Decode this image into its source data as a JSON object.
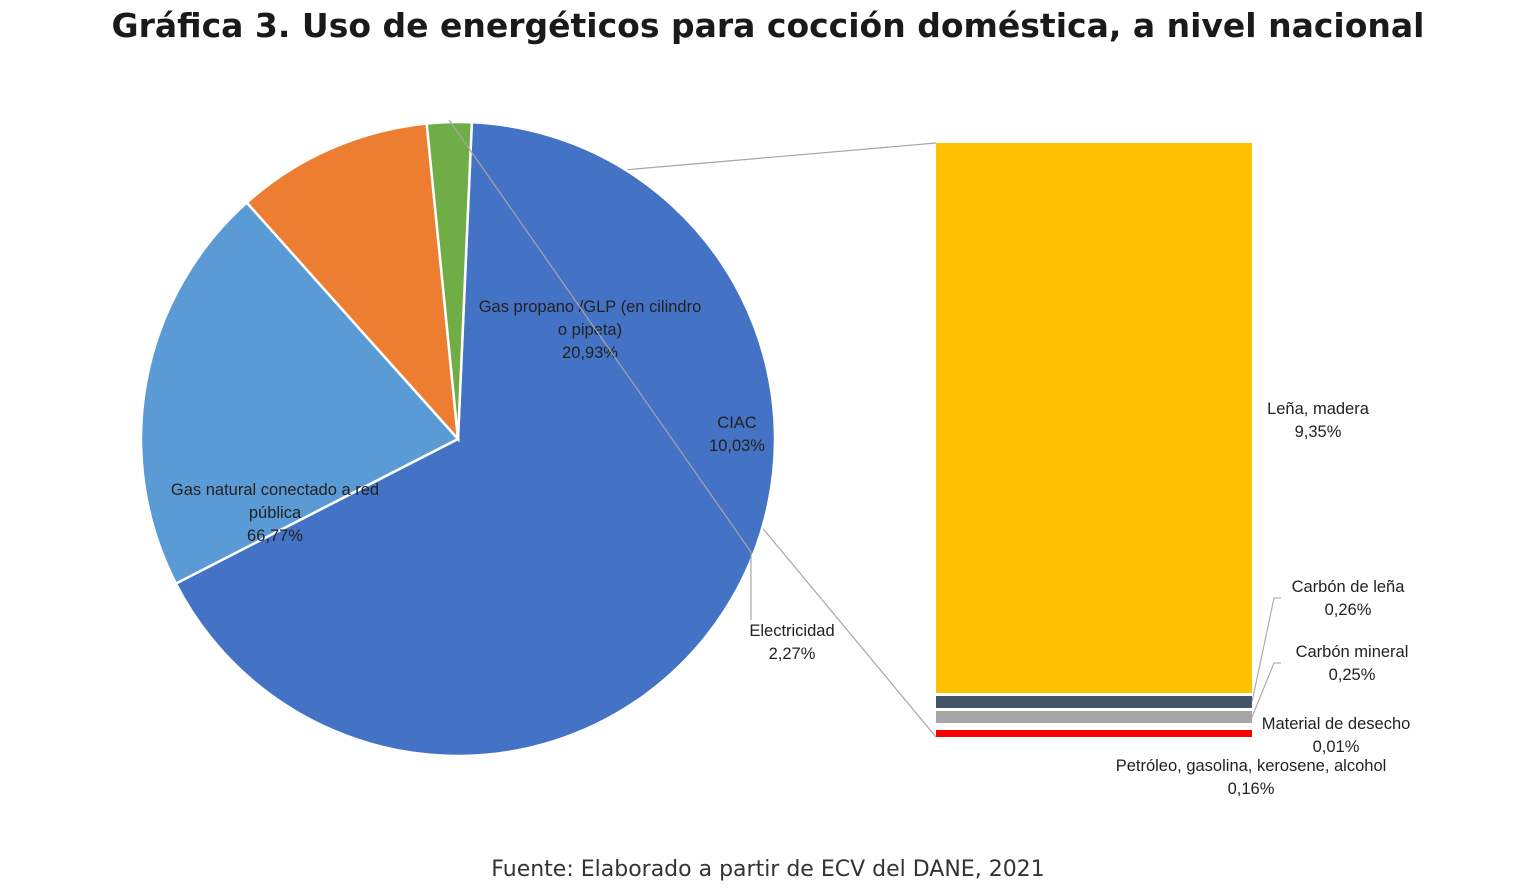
{
  "title": "Gráfica 3. Uso de energéticos para cocción doméstica, a nivel nacional",
  "source": "Fuente: Elaborado a partir de ECV del DANE, 2021",
  "chart_data": {
    "type": "pie",
    "legend": "none",
    "slices": [
      {
        "label_lines": [
          "Gas natural conectado a red",
          "pública"
        ],
        "value": 66.77,
        "value_label": "66,77%",
        "color": "#4472C4"
      },
      {
        "label_lines": [
          "Gas propano /GLP (en cilindro",
          "o pipeta)"
        ],
        "value": 20.93,
        "value_label": "20,93%",
        "color": "#5B9BD5"
      },
      {
        "label_lines": [
          "CIAC"
        ],
        "value": 10.03,
        "value_label": "10,03%",
        "color": "#ED7D31"
      },
      {
        "label_lines": [
          "Electricidad"
        ],
        "value": 2.27,
        "value_label": "2,27%",
        "color": "#70AD47"
      }
    ],
    "breakdown": {
      "parent": "CIAC",
      "type": "stacked-bar",
      "segments": [
        {
          "label": "Leña, madera",
          "value": 9.35,
          "value_label": "9,35%",
          "color": "#FFC000"
        },
        {
          "label": "Carbón de leña",
          "value": 0.26,
          "value_label": "0,26%",
          "color": "#44546A"
        },
        {
          "label": "Carbón mineral",
          "value": 0.25,
          "value_label": "0,25%",
          "color": "#A5A5A5"
        },
        {
          "label": "Material de desecho",
          "value": 0.01,
          "value_label": "0,01%",
          "color": "#F2F2F2"
        },
        {
          "label": "Petróleo, gasolina, kerosene, alcohol",
          "value": 0.16,
          "value_label": "0,16%",
          "color": "#FF0000"
        }
      ]
    }
  }
}
